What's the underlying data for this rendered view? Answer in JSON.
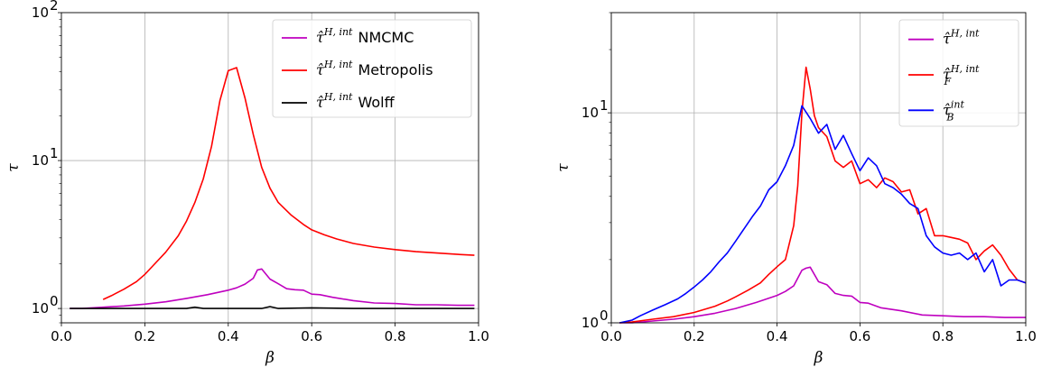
{
  "chart_data": [
    {
      "type": "line",
      "xlabel": "β",
      "ylabel": "τ",
      "xlim": [
        0.0,
        1.0
      ],
      "ylim": [
        0.8,
        100
      ],
      "yscale": "log",
      "grid": true,
      "legend_position": "top-right",
      "xticks": [
        "0.0",
        "0.2",
        "0.4",
        "0.6",
        "0.8",
        "1.0"
      ],
      "yticks": [
        {
          "value": 1,
          "base": "10",
          "exp": "0"
        },
        {
          "value": 10,
          "base": "10",
          "exp": "1"
        },
        {
          "value": 100,
          "base": "10",
          "exp": "2"
        }
      ],
      "series": [
        {
          "name": "NMCMC",
          "legend_symbol": "τ̂",
          "legend_sup": "H, int",
          "legend_text": "NMCMC",
          "color": "#bf00bf",
          "x": [
            0.02,
            0.05,
            0.1,
            0.15,
            0.2,
            0.25,
            0.3,
            0.35,
            0.4,
            0.42,
            0.44,
            0.46,
            0.47,
            0.48,
            0.5,
            0.52,
            0.54,
            0.56,
            0.58,
            0.6,
            0.62,
            0.65,
            0.7,
            0.75,
            0.8,
            0.85,
            0.9,
            0.95,
            0.99
          ],
          "y": [
            1.0,
            1.0,
            1.02,
            1.04,
            1.07,
            1.11,
            1.17,
            1.24,
            1.33,
            1.38,
            1.46,
            1.6,
            1.82,
            1.85,
            1.58,
            1.47,
            1.36,
            1.34,
            1.33,
            1.25,
            1.24,
            1.19,
            1.13,
            1.09,
            1.08,
            1.06,
            1.06,
            1.05,
            1.05
          ]
        },
        {
          "name": "Metropolis",
          "legend_symbol": "τ̂",
          "legend_sup": "H, int",
          "legend_text": "Metropolis",
          "color": "#ff0000",
          "x": [
            0.1,
            0.12,
            0.15,
            0.18,
            0.2,
            0.22,
            0.25,
            0.28,
            0.3,
            0.32,
            0.34,
            0.36,
            0.38,
            0.4,
            0.42,
            0.44,
            0.46,
            0.48,
            0.5,
            0.52,
            0.55,
            0.58,
            0.6,
            0.63,
            0.66,
            0.7,
            0.75,
            0.8,
            0.85,
            0.9,
            0.95,
            0.99
          ],
          "y": [
            1.15,
            1.22,
            1.35,
            1.52,
            1.7,
            1.95,
            2.4,
            3.1,
            3.9,
            5.2,
            7.5,
            12.5,
            25.5,
            40.5,
            42.5,
            26.5,
            15.0,
            9.0,
            6.5,
            5.2,
            4.3,
            3.7,
            3.4,
            3.15,
            2.95,
            2.75,
            2.6,
            2.5,
            2.42,
            2.37,
            2.32,
            2.29
          ]
        },
        {
          "name": "Wolff",
          "legend_symbol": "τ̂",
          "legend_sup": "H, int",
          "legend_text": "Wolff",
          "color": "#000000",
          "x": [
            0.02,
            0.1,
            0.2,
            0.3,
            0.32,
            0.34,
            0.4,
            0.45,
            0.48,
            0.5,
            0.52,
            0.6,
            0.7,
            0.8,
            0.9,
            0.99
          ],
          "y": [
            1.0,
            1.0,
            1.0,
            1.0,
            1.02,
            1.0,
            1.0,
            1.0,
            1.0,
            1.03,
            1.0,
            1.01,
            1.0,
            1.0,
            1.0,
            1.0
          ]
        }
      ]
    },
    {
      "type": "line",
      "xlabel": "β",
      "ylabel": "τ",
      "xlim": [
        0.0,
        1.0
      ],
      "ylim": [
        1.0,
        30
      ],
      "yscale": "log",
      "grid": true,
      "legend_position": "top-right",
      "xticks": [
        "0.0",
        "0.2",
        "0.4",
        "0.6",
        "0.8",
        "1.0"
      ],
      "yticks": [
        {
          "value": 1,
          "base": "10",
          "exp": "0"
        },
        {
          "value": 10,
          "base": "10",
          "exp": "1"
        }
      ],
      "series": [
        {
          "name": "τ̂^{H,int}",
          "legend_symbol": "τ̂",
          "legend_sup": "H, int",
          "legend_sub": "",
          "color": "#bf00bf",
          "x": [
            0.02,
            0.05,
            0.1,
            0.15,
            0.2,
            0.25,
            0.3,
            0.35,
            0.4,
            0.42,
            0.44,
            0.46,
            0.47,
            0.48,
            0.5,
            0.52,
            0.54,
            0.56,
            0.58,
            0.6,
            0.62,
            0.65,
            0.7,
            0.75,
            0.8,
            0.85,
            0.9,
            0.95,
            1.0
          ],
          "y": [
            1.0,
            1.0,
            1.02,
            1.04,
            1.07,
            1.11,
            1.17,
            1.25,
            1.35,
            1.41,
            1.5,
            1.78,
            1.82,
            1.84,
            1.57,
            1.52,
            1.38,
            1.35,
            1.34,
            1.25,
            1.24,
            1.18,
            1.14,
            1.09,
            1.08,
            1.07,
            1.07,
            1.06,
            1.06
          ]
        },
        {
          "name": "τ̂_F^{H,int}",
          "legend_symbol": "τ̂",
          "legend_sup": "H, int",
          "legend_sub": "F",
          "color": "#ff0000",
          "x": [
            0.02,
            0.05,
            0.1,
            0.15,
            0.2,
            0.25,
            0.28,
            0.3,
            0.33,
            0.36,
            0.38,
            0.4,
            0.42,
            0.44,
            0.45,
            0.46,
            0.47,
            0.48,
            0.49,
            0.5,
            0.52,
            0.54,
            0.56,
            0.58,
            0.6,
            0.62,
            0.64,
            0.66,
            0.68,
            0.7,
            0.72,
            0.74,
            0.76,
            0.78,
            0.8,
            0.82,
            0.84,
            0.86,
            0.88,
            0.9,
            0.92,
            0.94,
            0.96,
            0.98,
            1.0
          ],
          "y": [
            1.0,
            1.01,
            1.04,
            1.07,
            1.12,
            1.2,
            1.27,
            1.33,
            1.43,
            1.55,
            1.7,
            1.85,
            2.0,
            2.9,
            4.5,
            10.0,
            16.5,
            13.0,
            9.7,
            8.5,
            7.7,
            5.9,
            5.5,
            5.9,
            4.6,
            4.8,
            4.4,
            4.9,
            4.7,
            4.2,
            4.3,
            3.3,
            3.5,
            2.6,
            2.6,
            2.55,
            2.5,
            2.4,
            2.0,
            2.2,
            2.35,
            2.1,
            1.8,
            1.6,
            1.55
          ]
        },
        {
          "name": "τ̂_B^{int}",
          "legend_symbol": "τ̂",
          "legend_sup": "int",
          "legend_sub": "B",
          "color": "#0000ff",
          "x": [
            0.02,
            0.05,
            0.07,
            0.1,
            0.13,
            0.16,
            0.18,
            0.2,
            0.22,
            0.24,
            0.26,
            0.28,
            0.3,
            0.32,
            0.34,
            0.36,
            0.38,
            0.4,
            0.42,
            0.44,
            0.46,
            0.48,
            0.5,
            0.52,
            0.54,
            0.56,
            0.58,
            0.6,
            0.62,
            0.64,
            0.66,
            0.68,
            0.7,
            0.72,
            0.74,
            0.76,
            0.78,
            0.8,
            0.82,
            0.84,
            0.86,
            0.88,
            0.9,
            0.92,
            0.94,
            0.96,
            0.98,
            1.0
          ],
          "y": [
            1.0,
            1.03,
            1.08,
            1.15,
            1.22,
            1.3,
            1.38,
            1.48,
            1.6,
            1.75,
            1.95,
            2.15,
            2.45,
            2.8,
            3.2,
            3.6,
            4.3,
            4.7,
            5.6,
            7.0,
            10.8,
            9.4,
            8.0,
            8.8,
            6.7,
            7.8,
            6.4,
            5.3,
            6.1,
            5.6,
            4.6,
            4.4,
            4.1,
            3.7,
            3.5,
            2.6,
            2.3,
            2.15,
            2.1,
            2.15,
            2.0,
            2.15,
            1.75,
            2.0,
            1.5,
            1.6,
            1.6,
            1.55
          ]
        }
      ]
    }
  ]
}
